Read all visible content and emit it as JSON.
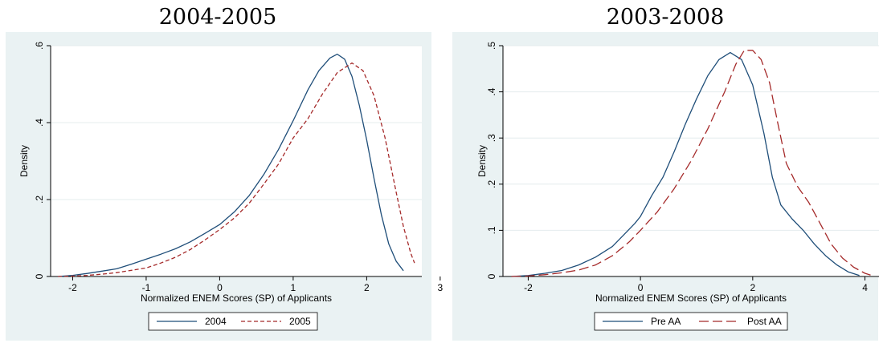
{
  "chart_data": [
    {
      "type": "line",
      "title": "2004-2005",
      "xlabel": "Normalized ENEM Scores (SP) of Applicants",
      "ylabel": "Density",
      "xlim": [
        -2.3,
        2.75
      ],
      "ylim": [
        0,
        0.6
      ],
      "xticks": [
        -2,
        -1,
        0,
        1,
        2,
        3
      ],
      "yticks": [
        0,
        0.2,
        0.4,
        0.6
      ],
      "ytick_labels": [
        "0",
        ".2",
        ".4",
        ".6"
      ],
      "grid": "horizontal",
      "legend": "bottom",
      "series": [
        {
          "name": "2004",
          "color": "#1f4e79",
          "style": "solid",
          "points": [
            [
              -2.2,
              0.0
            ],
            [
              -2.0,
              0.003
            ],
            [
              -1.8,
              0.008
            ],
            [
              -1.6,
              0.014
            ],
            [
              -1.4,
              0.02
            ],
            [
              -1.2,
              0.032
            ],
            [
              -1.0,
              0.045
            ],
            [
              -0.8,
              0.058
            ],
            [
              -0.6,
              0.072
            ],
            [
              -0.4,
              0.09
            ],
            [
              -0.2,
              0.112
            ],
            [
              0.0,
              0.135
            ],
            [
              0.2,
              0.168
            ],
            [
              0.4,
              0.21
            ],
            [
              0.6,
              0.265
            ],
            [
              0.8,
              0.33
            ],
            [
              1.0,
              0.405
            ],
            [
              1.2,
              0.485
            ],
            [
              1.35,
              0.535
            ],
            [
              1.5,
              0.568
            ],
            [
              1.6,
              0.578
            ],
            [
              1.7,
              0.565
            ],
            [
              1.8,
              0.52
            ],
            [
              1.9,
              0.445
            ],
            [
              2.0,
              0.355
            ],
            [
              2.1,
              0.255
            ],
            [
              2.2,
              0.16
            ],
            [
              2.3,
              0.085
            ],
            [
              2.4,
              0.04
            ],
            [
              2.5,
              0.015
            ]
          ]
        },
        {
          "name": "2005",
          "color": "#a52a2a",
          "style": "dashed",
          "points": [
            [
              -2.2,
              0.0
            ],
            [
              -2.0,
              0.001
            ],
            [
              -1.8,
              0.003
            ],
            [
              -1.6,
              0.006
            ],
            [
              -1.4,
              0.01
            ],
            [
              -1.2,
              0.016
            ],
            [
              -1.0,
              0.022
            ],
            [
              -0.8,
              0.035
            ],
            [
              -0.6,
              0.05
            ],
            [
              -0.4,
              0.07
            ],
            [
              -0.2,
              0.095
            ],
            [
              0.0,
              0.122
            ],
            [
              0.2,
              0.152
            ],
            [
              0.4,
              0.19
            ],
            [
              0.6,
              0.24
            ],
            [
              0.8,
              0.292
            ],
            [
              1.0,
              0.36
            ],
            [
              1.2,
              0.41
            ],
            [
              1.4,
              0.475
            ],
            [
              1.6,
              0.53
            ],
            [
              1.8,
              0.555
            ],
            [
              1.95,
              0.535
            ],
            [
              2.1,
              0.47
            ],
            [
              2.25,
              0.36
            ],
            [
              2.4,
              0.22
            ],
            [
              2.5,
              0.13
            ],
            [
              2.6,
              0.06
            ],
            [
              2.65,
              0.035
            ]
          ]
        }
      ]
    },
    {
      "type": "line",
      "title": "2003-2008",
      "xlabel": "Normalized ENEM Scores (SP) of Applicants",
      "ylabel": "Density",
      "xlim": [
        -2.45,
        4.25
      ],
      "ylim": [
        0,
        0.5
      ],
      "xticks": [
        -2,
        0,
        2,
        4
      ],
      "yticks": [
        0,
        0.1,
        0.2,
        0.3,
        0.4,
        0.5
      ],
      "ytick_labels": [
        "0",
        ".1",
        ".2",
        ".3",
        ".4",
        ".5"
      ],
      "grid": "horizontal",
      "legend": "bottom",
      "series": [
        {
          "name": "Pre AA",
          "color": "#1f4e79",
          "style": "solid",
          "points": [
            [
              -2.3,
              0.0
            ],
            [
              -2.0,
              0.002
            ],
            [
              -1.7,
              0.007
            ],
            [
              -1.4,
              0.013
            ],
            [
              -1.1,
              0.025
            ],
            [
              -0.8,
              0.042
            ],
            [
              -0.5,
              0.065
            ],
            [
              -0.3,
              0.09
            ],
            [
              -0.1,
              0.115
            ],
            [
              0.0,
              0.13
            ],
            [
              0.2,
              0.175
            ],
            [
              0.4,
              0.215
            ],
            [
              0.6,
              0.27
            ],
            [
              0.8,
              0.33
            ],
            [
              1.0,
              0.385
            ],
            [
              1.2,
              0.435
            ],
            [
              1.4,
              0.47
            ],
            [
              1.6,
              0.485
            ],
            [
              1.8,
              0.47
            ],
            [
              2.0,
              0.415
            ],
            [
              2.2,
              0.31
            ],
            [
              2.35,
              0.215
            ],
            [
              2.5,
              0.155
            ],
            [
              2.7,
              0.125
            ],
            [
              2.9,
              0.1
            ],
            [
              3.1,
              0.07
            ],
            [
              3.3,
              0.045
            ],
            [
              3.5,
              0.025
            ],
            [
              3.7,
              0.01
            ],
            [
              3.9,
              0.002
            ]
          ]
        },
        {
          "name": "Post AA",
          "color": "#a52a2a",
          "style": "dashed",
          "points": [
            [
              -2.3,
              0.0
            ],
            [
              -2.0,
              0.001
            ],
            [
              -1.7,
              0.004
            ],
            [
              -1.4,
              0.008
            ],
            [
              -1.1,
              0.014
            ],
            [
              -0.8,
              0.025
            ],
            [
              -0.5,
              0.045
            ],
            [
              -0.2,
              0.075
            ],
            [
              0.0,
              0.1
            ],
            [
              0.3,
              0.14
            ],
            [
              0.6,
              0.19
            ],
            [
              0.9,
              0.25
            ],
            [
              1.2,
              0.32
            ],
            [
              1.5,
              0.4
            ],
            [
              1.7,
              0.46
            ],
            [
              1.85,
              0.49
            ],
            [
              2.0,
              0.49
            ],
            [
              2.15,
              0.47
            ],
            [
              2.3,
              0.42
            ],
            [
              2.45,
              0.33
            ],
            [
              2.6,
              0.245
            ],
            [
              2.8,
              0.195
            ],
            [
              3.0,
              0.16
            ],
            [
              3.2,
              0.115
            ],
            [
              3.4,
              0.07
            ],
            [
              3.6,
              0.04
            ],
            [
              3.8,
              0.02
            ],
            [
              4.0,
              0.007
            ],
            [
              4.1,
              0.003
            ]
          ]
        }
      ]
    }
  ]
}
